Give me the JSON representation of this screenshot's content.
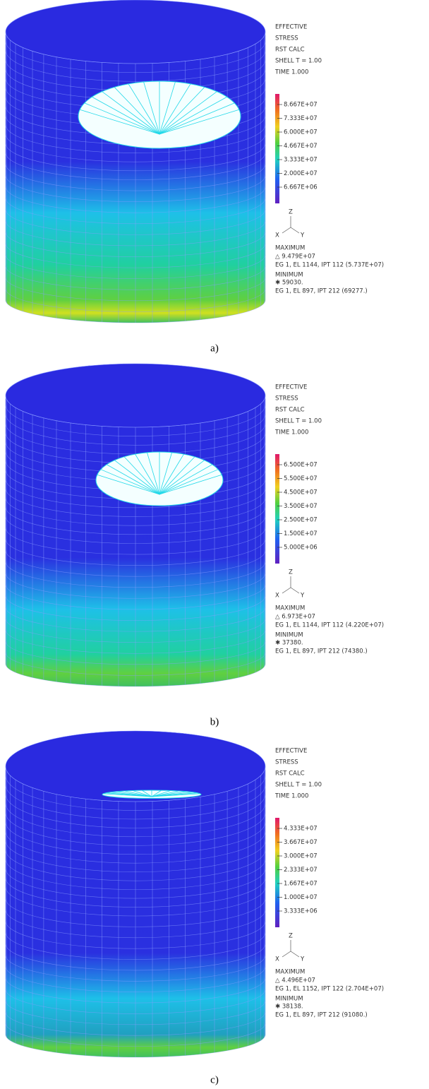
{
  "panels": [
    {
      "header": [
        "EFFECTIVE",
        "STRESS",
        "RST CALC",
        "SHELL T = 1.00",
        "TIME 1.000"
      ],
      "legend": [
        "8.667E+07",
        "7.333E+07",
        "6.000E+07",
        "4.667E+07",
        "3.333E+07",
        "2.000E+07",
        "6.667E+06"
      ],
      "axes": [
        "Z",
        "X",
        "Y"
      ],
      "extremes": [
        "MAXIMUM",
        "△ 9.479E+07",
        "EG 1, EL 1144, IPT 112 (5.737E+07)",
        "MINIMUM",
        "✱ 59030.",
        "EG 1, EL 897, IPT 212 (69277.)"
      ],
      "caption": "a)"
    },
    {
      "header": [
        "EFFECTIVE",
        "STRESS",
        "RST CALC",
        "SHELL T = 1.00",
        "TIME 1.000"
      ],
      "legend": [
        "6.500E+07",
        "5.500E+07",
        "4.500E+07",
        "3.500E+07",
        "2.500E+07",
        "1.500E+07",
        "5.000E+06"
      ],
      "axes": [
        "Z",
        "X",
        "Y"
      ],
      "extremes": [
        "MAXIMUM",
        "△ 6.973E+07",
        "EG 1, EL 1144, IPT 112 (4.220E+07)",
        "MINIMUM",
        "✱ 37380.",
        "EG 1, EL 897, IPT 212 (74380.)"
      ],
      "caption": "b)"
    },
    {
      "header": [
        "EFFECTIVE",
        "STRESS",
        "RST CALC",
        "SHELL T = 1.00",
        "TIME 1.000"
      ],
      "legend": [
        "4.333E+07",
        "3.667E+07",
        "3.000E+07",
        "2.333E+07",
        "1.667E+07",
        "1.000E+07",
        "3.333E+06"
      ],
      "axes": [
        "Z",
        "X",
        "Y"
      ],
      "extremes": [
        "MAXIMUM",
        "△ 4.496E+07",
        "EG 1, EL 1152, IPT 122 (2.704E+07)",
        "MINIMUM",
        "✱ 38138.",
        "EG 1, EL 897, IPT 212 (91080.)"
      ],
      "caption": "c)"
    }
  ]
}
